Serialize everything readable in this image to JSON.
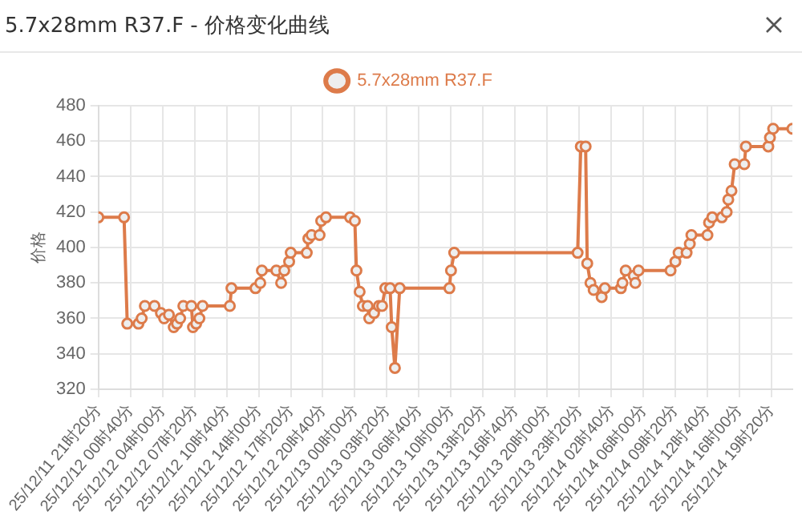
{
  "chart_data": {
    "type": "line",
    "title": "5.7x28mm R37.F - 价格变化曲线",
    "ylabel": "价格",
    "legend": "top",
    "grid": true,
    "marker": "circle",
    "line_style": "solid",
    "ylim": [
      320,
      480
    ],
    "yticks": [
      320,
      340,
      360,
      380,
      400,
      420,
      440,
      460,
      480
    ],
    "xlim": [
      "--12-11T21:20",
      "--12-14T21:30"
    ],
    "xticks": [
      {
        "value": "--12-11T21:20",
        "label": "25/12/11 21时20分"
      },
      {
        "value": "--12-12T00:40",
        "label": "25/12/12 00时40分"
      },
      {
        "value": "--12-12T04:00",
        "label": "25/12/12 04时00分"
      },
      {
        "value": "--12-12T07:20",
        "label": "25/12/12 07时20分"
      },
      {
        "value": "--12-12T10:40",
        "label": "25/12/12 10时40分"
      },
      {
        "value": "--12-12T14:00",
        "label": "25/12/12 14时00分"
      },
      {
        "value": "--12-12T17:20",
        "label": "25/12/12 17时20分"
      },
      {
        "value": "--12-12T20:40",
        "label": "25/12/12 20时40分"
      },
      {
        "value": "--12-13T00:00",
        "label": "25/12/13 00时00分"
      },
      {
        "value": "--12-13T03:20",
        "label": "25/12/13 03时20分"
      },
      {
        "value": "--12-13T06:40",
        "label": "25/12/13 06时40分"
      },
      {
        "value": "--12-13T10:00",
        "label": "25/12/13 10时00分"
      },
      {
        "value": "--12-13T13:20",
        "label": "25/12/13 13时20分"
      },
      {
        "value": "--12-13T16:40",
        "label": "25/12/13 16时40分"
      },
      {
        "value": "--12-13T20:00",
        "label": "25/12/13 20时00分"
      },
      {
        "value": "--12-13T23:20",
        "label": "25/12/13 23时20分"
      },
      {
        "value": "--12-14T02:40",
        "label": "25/12/14 02时40分"
      },
      {
        "value": "--12-14T06:00",
        "label": "25/12/14 06时00分"
      },
      {
        "value": "--12-14T09:20",
        "label": "25/12/14 09时20分"
      },
      {
        "value": "--12-14T12:40",
        "label": "25/12/14 12时40分"
      },
      {
        "value": "--12-14T16:00",
        "label": "25/12/14 16时00分"
      },
      {
        "value": "--12-14T19:20",
        "label": "25/12/14 19时20分"
      }
    ],
    "series": [
      {
        "name": "5.7x28mm R37.F",
        "color": "#dd7b4a",
        "x": [
          "--12-11T21:20",
          "--12-12T00:00",
          "--12-12T00:20",
          "--12-12T01:30",
          "--12-12T01:50",
          "--12-12T02:10",
          "--12-12T03:10",
          "--12-12T03:50",
          "--12-12T04:10",
          "--12-12T04:40",
          "--12-12T05:10",
          "--12-12T05:30",
          "--12-12T05:50",
          "--12-12T06:10",
          "--12-12T07:00",
          "--12-12T07:10",
          "--12-12T07:30",
          "--12-12T07:50",
          "--12-12T08:10",
          "--12-12T11:00",
          "--12-12T11:10",
          "--12-12T13:40",
          "--12-12T14:10",
          "--12-12T14:20",
          "--12-12T15:50",
          "--12-12T16:20",
          "--12-12T16:40",
          "--12-12T17:10",
          "--12-12T17:20",
          "--12-12T19:00",
          "--12-12T19:10",
          "--12-12T19:30",
          "--12-12T20:20",
          "--12-12T20:30",
          "--12-12T21:00",
          "--12-12T23:30",
          "--12-13T00:00",
          "--12-13T00:10",
          "--12-13T00:30",
          "--12-13T00:50",
          "--12-13T01:20",
          "--12-13T01:30",
          "--12-13T02:00",
          "--12-13T02:30",
          "--12-13T02:50",
          "--12-13T03:10",
          "--12-13T03:40",
          "--12-13T03:50",
          "--12-13T04:10",
          "--12-13T04:40",
          "--12-13T09:50",
          "--12-13T10:00",
          "--12-13T10:20",
          "--12-13T23:10",
          "--12-13T23:30",
          "--12-14T00:00",
          "--12-14T00:10",
          "--12-14T00:30",
          "--12-14T00:50",
          "--12-14T01:40",
          "--12-14T02:00",
          "--12-14T03:40",
          "--12-14T03:50",
          "--12-14T04:10",
          "--12-14T05:00",
          "--12-14T05:10",
          "--12-14T05:30",
          "--12-14T08:50",
          "--12-14T09:20",
          "--12-14T09:40",
          "--12-14T10:30",
          "--12-14T10:50",
          "--12-14T11:00",
          "--12-14T12:40",
          "--12-14T12:50",
          "--12-14T13:10",
          "--12-14T14:10",
          "--12-14T14:40",
          "--12-14T14:50",
          "--12-14T15:10",
          "--12-14T15:30",
          "--12-14T16:30",
          "--12-14T16:40",
          "--12-14T19:00",
          "--12-14T19:10",
          "--12-14T19:30",
          "--12-14T21:30"
        ],
        "values": [
          417,
          417,
          357,
          357,
          360,
          367,
          367,
          363,
          360,
          362,
          355,
          357,
          360,
          367,
          367,
          355,
          357,
          360,
          367,
          367,
          377,
          377,
          380,
          387,
          387,
          380,
          387,
          392,
          397,
          397,
          405,
          407,
          407,
          415,
          417,
          417,
          415,
          387,
          375,
          367,
          367,
          360,
          363,
          367,
          367,
          377,
          377,
          355,
          332,
          377,
          377,
          387,
          397,
          397,
          457,
          457,
          391,
          380,
          376,
          372,
          377,
          377,
          380,
          387,
          384,
          380,
          387,
          387,
          392,
          397,
          397,
          402,
          407,
          407,
          414,
          417,
          417,
          420,
          427,
          432,
          447,
          447,
          457,
          457,
          462,
          467,
          467
        ]
      }
    ]
  }
}
